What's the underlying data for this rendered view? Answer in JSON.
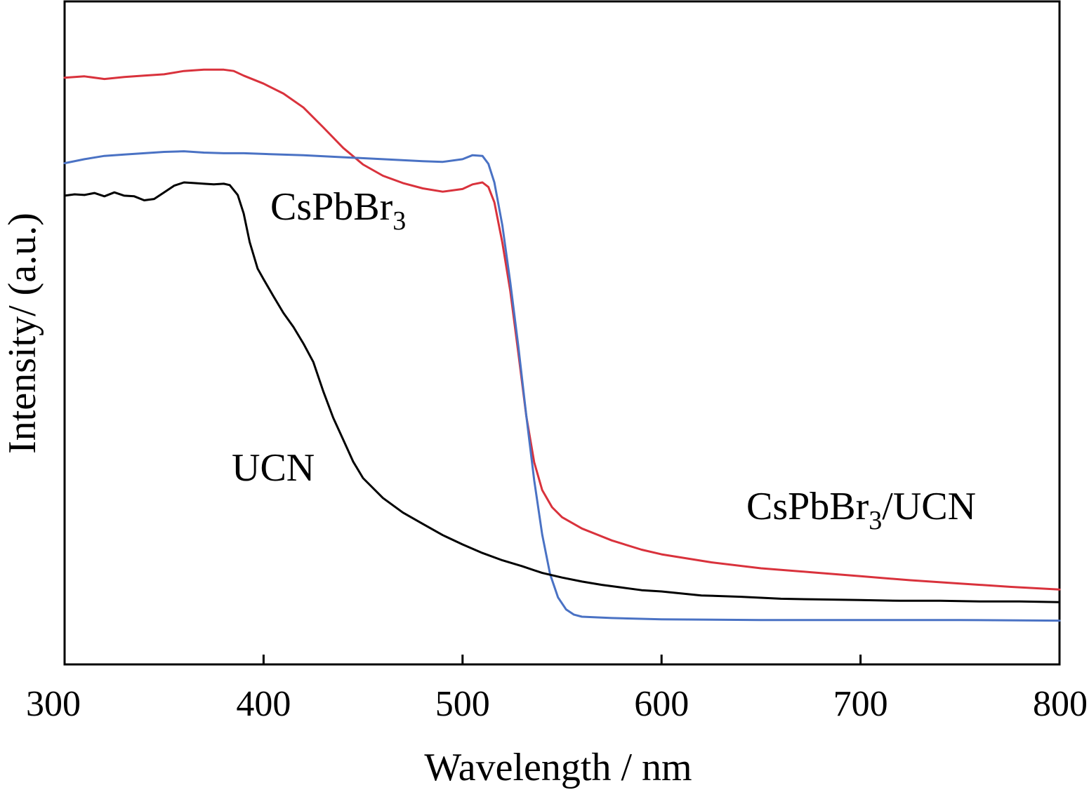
{
  "chart_data": {
    "type": "line",
    "xlabel": "Wavelength / nm",
    "ylabel": "Intensity/ (a.u.)",
    "xlim": [
      300,
      800
    ],
    "ylim": [
      0,
      1
    ],
    "x_ticks": [
      "300",
      "400",
      "500",
      "600",
      "700",
      "800"
    ],
    "grid": false,
    "colors": {
      "CsPbBr3/UCN": "#d9323c",
      "CsPbBr3": "#4a72c4",
      "UCN": "#000000"
    },
    "series": [
      {
        "name": "CsPbBr3/UCN",
        "color": "#d9323c",
        "points": [
          [
            300,
            0.885
          ],
          [
            310,
            0.887
          ],
          [
            320,
            0.883
          ],
          [
            330,
            0.886
          ],
          [
            340,
            0.888
          ],
          [
            350,
            0.89
          ],
          [
            360,
            0.895
          ],
          [
            370,
            0.897
          ],
          [
            380,
            0.897
          ],
          [
            385,
            0.895
          ],
          [
            390,
            0.888
          ],
          [
            400,
            0.876
          ],
          [
            410,
            0.861
          ],
          [
            420,
            0.84
          ],
          [
            430,
            0.81
          ],
          [
            440,
            0.779
          ],
          [
            450,
            0.754
          ],
          [
            460,
            0.737
          ],
          [
            470,
            0.726
          ],
          [
            480,
            0.718
          ],
          [
            490,
            0.713
          ],
          [
            500,
            0.717
          ],
          [
            505,
            0.724
          ],
          [
            510,
            0.727
          ],
          [
            513,
            0.72
          ],
          [
            516,
            0.697
          ],
          [
            520,
            0.636
          ],
          [
            524,
            0.563
          ],
          [
            528,
            0.47
          ],
          [
            532,
            0.375
          ],
          [
            536,
            0.305
          ],
          [
            540,
            0.263
          ],
          [
            545,
            0.237
          ],
          [
            550,
            0.222
          ],
          [
            560,
            0.205
          ],
          [
            575,
            0.187
          ],
          [
            590,
            0.173
          ],
          [
            600,
            0.166
          ],
          [
            625,
            0.154
          ],
          [
            650,
            0.145
          ],
          [
            675,
            0.139
          ],
          [
            700,
            0.133
          ],
          [
            725,
            0.127
          ],
          [
            750,
            0.122
          ],
          [
            775,
            0.117
          ],
          [
            800,
            0.113
          ]
        ]
      },
      {
        "name": "CsPbBr3",
        "color": "#4a72c4",
        "points": [
          [
            300,
            0.756
          ],
          [
            310,
            0.762
          ],
          [
            320,
            0.767
          ],
          [
            330,
            0.769
          ],
          [
            340,
            0.771
          ],
          [
            350,
            0.773
          ],
          [
            360,
            0.774
          ],
          [
            370,
            0.772
          ],
          [
            380,
            0.771
          ],
          [
            390,
            0.771
          ],
          [
            400,
            0.77
          ],
          [
            420,
            0.768
          ],
          [
            440,
            0.765
          ],
          [
            460,
            0.762
          ],
          [
            480,
            0.759
          ],
          [
            490,
            0.758
          ],
          [
            500,
            0.762
          ],
          [
            505,
            0.768
          ],
          [
            510,
            0.767
          ],
          [
            513,
            0.755
          ],
          [
            516,
            0.727
          ],
          [
            520,
            0.662
          ],
          [
            524,
            0.576
          ],
          [
            528,
            0.48
          ],
          [
            532,
            0.376
          ],
          [
            536,
            0.278
          ],
          [
            540,
            0.196
          ],
          [
            544,
            0.136
          ],
          [
            548,
            0.101
          ],
          [
            552,
            0.083
          ],
          [
            556,
            0.075
          ],
          [
            560,
            0.072
          ],
          [
            575,
            0.07
          ],
          [
            600,
            0.068
          ],
          [
            650,
            0.067
          ],
          [
            700,
            0.067
          ],
          [
            750,
            0.067
          ],
          [
            800,
            0.066
          ]
        ]
      },
      {
        "name": "UCN",
        "color": "#000000",
        "points": [
          [
            300,
            0.707
          ],
          [
            305,
            0.709
          ],
          [
            310,
            0.708
          ],
          [
            315,
            0.711
          ],
          [
            320,
            0.706
          ],
          [
            325,
            0.712
          ],
          [
            330,
            0.707
          ],
          [
            335,
            0.706
          ],
          [
            340,
            0.7
          ],
          [
            345,
            0.702
          ],
          [
            350,
            0.712
          ],
          [
            355,
            0.722
          ],
          [
            360,
            0.727
          ],
          [
            365,
            0.726
          ],
          [
            370,
            0.725
          ],
          [
            375,
            0.724
          ],
          [
            380,
            0.725
          ],
          [
            383,
            0.723
          ],
          [
            387,
            0.708
          ],
          [
            390,
            0.68
          ],
          [
            393,
            0.637
          ],
          [
            397,
            0.597
          ],
          [
            400,
            0.581
          ],
          [
            405,
            0.555
          ],
          [
            410,
            0.53
          ],
          [
            415,
            0.509
          ],
          [
            420,
            0.484
          ],
          [
            425,
            0.456
          ],
          [
            430,
            0.412
          ],
          [
            435,
            0.372
          ],
          [
            440,
            0.339
          ],
          [
            445,
            0.306
          ],
          [
            450,
            0.281
          ],
          [
            460,
            0.251
          ],
          [
            470,
            0.229
          ],
          [
            480,
            0.212
          ],
          [
            490,
            0.195
          ],
          [
            500,
            0.181
          ],
          [
            510,
            0.168
          ],
          [
            520,
            0.157
          ],
          [
            530,
            0.148
          ],
          [
            540,
            0.138
          ],
          [
            550,
            0.131
          ],
          [
            560,
            0.125
          ],
          [
            570,
            0.12
          ],
          [
            580,
            0.116
          ],
          [
            590,
            0.112
          ],
          [
            600,
            0.11
          ],
          [
            620,
            0.104
          ],
          [
            640,
            0.102
          ],
          [
            660,
            0.099
          ],
          [
            680,
            0.098
          ],
          [
            700,
            0.097
          ],
          [
            720,
            0.096
          ],
          [
            740,
            0.096
          ],
          [
            760,
            0.095
          ],
          [
            780,
            0.095
          ],
          [
            800,
            0.094
          ]
        ]
      }
    ],
    "annotations": [
      {
        "series": "CsPbBr3",
        "base": "CsPbBr",
        "sub": "3",
        "suffix": ""
      },
      {
        "series": "UCN",
        "base": "UCN",
        "sub": "",
        "suffix": ""
      },
      {
        "series": "CsPbBr3/UCN",
        "base": "CsPbBr",
        "sub": "3",
        "suffix": "/UCN"
      }
    ]
  }
}
